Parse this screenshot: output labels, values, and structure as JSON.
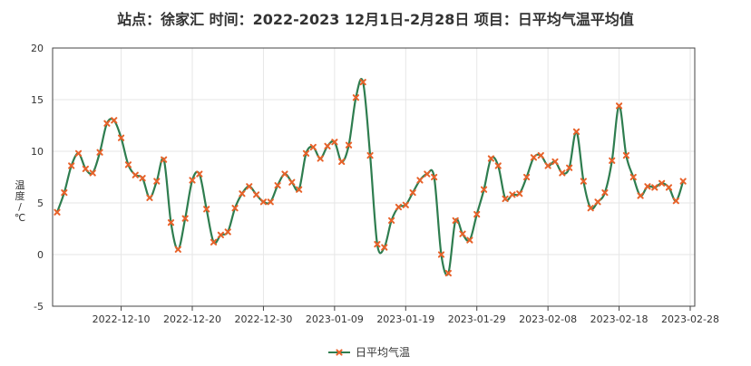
{
  "chart_data": {
    "type": "line",
    "title": "站点：徐家汇 时间：2022-2023  12月1日-2月28日 项目：日平均气温平均值",
    "ylabel_chars": [
      "温",
      "度",
      "/",
      "℃"
    ],
    "ylim": [
      -5,
      20
    ],
    "yticks": [
      -5,
      0,
      5,
      10,
      15,
      20
    ],
    "grid": true,
    "legend_position": "bottom-center",
    "x_start": "2022-12-01",
    "x_end": "2023-02-28",
    "xtick_labels": [
      "2022-12-10",
      "2022-12-20",
      "2022-12-30",
      "2023-01-09",
      "2023-01-19",
      "2023-01-29",
      "2023-02-08",
      "2023-02-18",
      "2023-02-28"
    ],
    "series": [
      {
        "name": "日平均气温",
        "line_color": "#2e7d4f",
        "marker_color": "#e8622a",
        "values": [
          4.1,
          6.0,
          8.6,
          9.8,
          8.3,
          7.9,
          9.9,
          12.7,
          13.0,
          11.3,
          8.7,
          7.7,
          7.4,
          5.5,
          7.1,
          9.2,
          3.1,
          0.5,
          3.5,
          7.2,
          7.8,
          4.4,
          1.2,
          1.9,
          2.2,
          4.5,
          5.9,
          6.6,
          5.8,
          5.1,
          5.1,
          6.7,
          7.8,
          7.0,
          6.3,
          9.8,
          10.4,
          9.3,
          10.5,
          10.9,
          9.0,
          10.6,
          15.2,
          16.7,
          9.6,
          1.0,
          0.7,
          3.3,
          4.6,
          4.8,
          6.0,
          7.2,
          7.8,
          7.5,
          0.0,
          -1.8,
          3.3,
          2.0,
          1.4,
          3.9,
          6.3,
          9.3,
          8.6,
          5.4,
          5.8,
          5.9,
          7.5,
          9.4,
          9.6,
          8.6,
          9.0,
          7.9,
          8.4,
          11.9,
          7.1,
          4.5,
          5.1,
          6.0,
          9.1,
          14.4,
          9.6,
          7.5,
          5.7,
          6.6,
          6.5,
          6.9,
          6.5,
          5.2,
          7.1
        ]
      }
    ]
  }
}
